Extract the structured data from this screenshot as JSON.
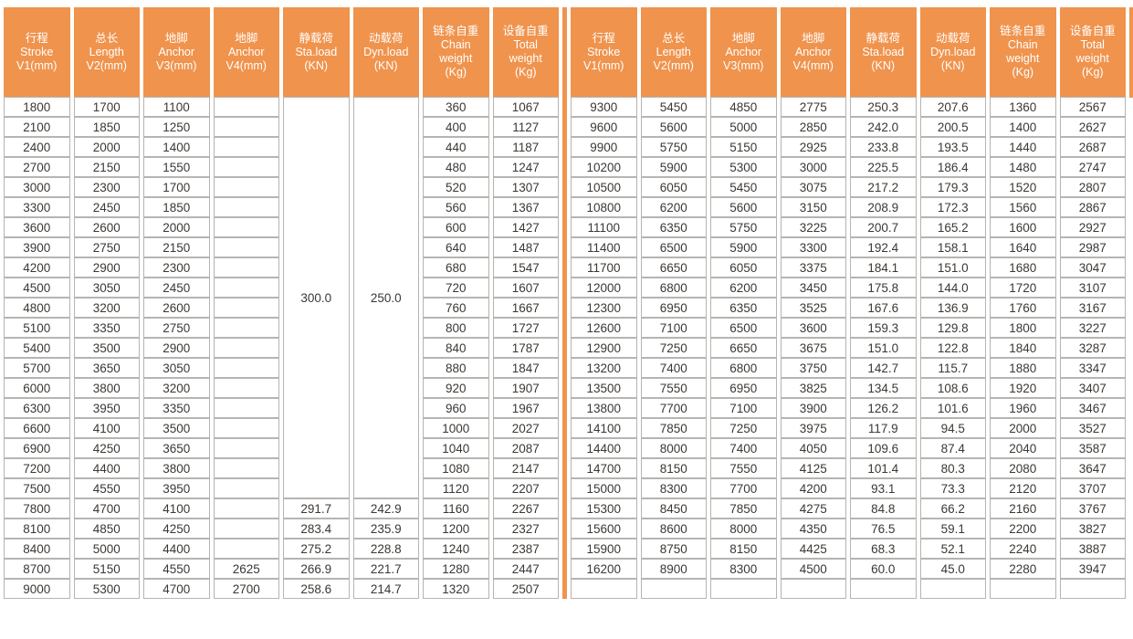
{
  "colors": {
    "header_bg": "#F0934D",
    "header_text": "#ffffff",
    "cell_border": "#b7b4b1",
    "cell_text": "#3b3835",
    "divider": "#F0934D"
  },
  "chart_data": {
    "type": "table",
    "note": "Technical specification table, two side-by-side halves sharing identical column headers"
  },
  "table": {
    "columns": [
      {
        "lines": [
          "行程",
          "Stroke",
          "V1(mm)"
        ]
      },
      {
        "lines": [
          "总长",
          "Length",
          "V2(mm)"
        ]
      },
      {
        "lines": [
          "地脚",
          "Anchor",
          "V3(mm)"
        ]
      },
      {
        "lines": [
          "地脚",
          "Anchor",
          "V4(mm)"
        ]
      },
      {
        "lines": [
          "静载荷",
          "Sta.load",
          "(KN)"
        ]
      },
      {
        "lines": [
          "动载荷",
          "Dyn.load",
          "(KN)"
        ]
      },
      {
        "lines": [
          "链条自重",
          "Chain",
          "weight",
          "(Kg)"
        ]
      },
      {
        "lines": [
          "设备自重",
          "Total",
          "weight",
          "(Kg)"
        ]
      }
    ],
    "left": {
      "merge": {
        "startCol": 4,
        "span": 2,
        "rowCount": 20,
        "values": [
          "300.0",
          "250.0"
        ]
      },
      "rows": [
        [
          "1800",
          "1700",
          "1100",
          "",
          "",
          "",
          "360",
          "1067"
        ],
        [
          "2100",
          "1850",
          "1250",
          "",
          "",
          "",
          "400",
          "1127"
        ],
        [
          "2400",
          "2000",
          "1400",
          "",
          "",
          "",
          "440",
          "1187"
        ],
        [
          "2700",
          "2150",
          "1550",
          "",
          "",
          "",
          "480",
          "1247"
        ],
        [
          "3000",
          "2300",
          "1700",
          "",
          "",
          "",
          "520",
          "1307"
        ],
        [
          "3300",
          "2450",
          "1850",
          "",
          "",
          "",
          "560",
          "1367"
        ],
        [
          "3600",
          "2600",
          "2000",
          "",
          "",
          "",
          "600",
          "1427"
        ],
        [
          "3900",
          "2750",
          "2150",
          "",
          "",
          "",
          "640",
          "1487"
        ],
        [
          "4200",
          "2900",
          "2300",
          "",
          "",
          "",
          "680",
          "1547"
        ],
        [
          "4500",
          "3050",
          "2450",
          "",
          "",
          "",
          "720",
          "1607"
        ],
        [
          "4800",
          "3200",
          "2600",
          "",
          "",
          "",
          "760",
          "1667"
        ],
        [
          "5100",
          "3350",
          "2750",
          "",
          "",
          "",
          "800",
          "1727"
        ],
        [
          "5400",
          "3500",
          "2900",
          "",
          "",
          "",
          "840",
          "1787"
        ],
        [
          "5700",
          "3650",
          "3050",
          "",
          "",
          "",
          "880",
          "1847"
        ],
        [
          "6000",
          "3800",
          "3200",
          "",
          "",
          "",
          "920",
          "1907"
        ],
        [
          "6300",
          "3950",
          "3350",
          "",
          "",
          "",
          "960",
          "1967"
        ],
        [
          "6600",
          "4100",
          "3500",
          "",
          "",
          "",
          "1000",
          "2027"
        ],
        [
          "6900",
          "4250",
          "3650",
          "",
          "",
          "",
          "1040",
          "2087"
        ],
        [
          "7200",
          "4400",
          "3800",
          "",
          "",
          "",
          "1080",
          "2147"
        ],
        [
          "7500",
          "4550",
          "3950",
          "",
          "",
          "",
          "1120",
          "2207"
        ],
        [
          "7800",
          "4700",
          "4100",
          "",
          "291.7",
          "242.9",
          "1160",
          "2267"
        ],
        [
          "8100",
          "4850",
          "4250",
          "",
          "283.4",
          "235.9",
          "1200",
          "2327"
        ],
        [
          "8400",
          "5000",
          "4400",
          "",
          "275.2",
          "228.8",
          "1240",
          "2387"
        ],
        [
          "8700",
          "5150",
          "4550",
          "2625",
          "266.9",
          "221.7",
          "1280",
          "2447"
        ],
        [
          "9000",
          "5300",
          "4700",
          "2700",
          "258.6",
          "214.7",
          "1320",
          "2507"
        ]
      ]
    },
    "right": {
      "rows": [
        [
          "9300",
          "5450",
          "4850",
          "2775",
          "250.3",
          "207.6",
          "1360",
          "2567"
        ],
        [
          "9600",
          "5600",
          "5000",
          "2850",
          "242.0",
          "200.5",
          "1400",
          "2627"
        ],
        [
          "9900",
          "5750",
          "5150",
          "2925",
          "233.8",
          "193.5",
          "1440",
          "2687"
        ],
        [
          "10200",
          "5900",
          "5300",
          "3000",
          "225.5",
          "186.4",
          "1480",
          "2747"
        ],
        [
          "10500",
          "6050",
          "5450",
          "3075",
          "217.2",
          "179.3",
          "1520",
          "2807"
        ],
        [
          "10800",
          "6200",
          "5600",
          "3150",
          "208.9",
          "172.3",
          "1560",
          "2867"
        ],
        [
          "11100",
          "6350",
          "5750",
          "3225",
          "200.7",
          "165.2",
          "1600",
          "2927"
        ],
        [
          "11400",
          "6500",
          "5900",
          "3300",
          "192.4",
          "158.1",
          "1640",
          "2987"
        ],
        [
          "11700",
          "6650",
          "6050",
          "3375",
          "184.1",
          "151.0",
          "1680",
          "3047"
        ],
        [
          "12000",
          "6800",
          "6200",
          "3450",
          "175.8",
          "144.0",
          "1720",
          "3107"
        ],
        [
          "12300",
          "6950",
          "6350",
          "3525",
          "167.6",
          "136.9",
          "1760",
          "3167"
        ],
        [
          "12600",
          "7100",
          "6500",
          "3600",
          "159.3",
          "129.8",
          "1800",
          "3227"
        ],
        [
          "12900",
          "7250",
          "6650",
          "3675",
          "151.0",
          "122.8",
          "1840",
          "3287"
        ],
        [
          "13200",
          "7400",
          "6800",
          "3750",
          "142.7",
          "115.7",
          "1880",
          "3347"
        ],
        [
          "13500",
          "7550",
          "6950",
          "3825",
          "134.5",
          "108.6",
          "1920",
          "3407"
        ],
        [
          "13800",
          "7700",
          "7100",
          "3900",
          "126.2",
          "101.6",
          "1960",
          "3467"
        ],
        [
          "14100",
          "7850",
          "7250",
          "3975",
          "117.9",
          "94.5",
          "2000",
          "3527"
        ],
        [
          "14400",
          "8000",
          "7400",
          "4050",
          "109.6",
          "87.4",
          "2040",
          "3587"
        ],
        [
          "14700",
          "8150",
          "7550",
          "4125",
          "101.4",
          "80.3",
          "2080",
          "3647"
        ],
        [
          "15000",
          "8300",
          "7700",
          "4200",
          "93.1",
          "73.3",
          "2120",
          "3707"
        ],
        [
          "15300",
          "8450",
          "7850",
          "4275",
          "84.8",
          "66.2",
          "2160",
          "3767"
        ],
        [
          "15600",
          "8600",
          "8000",
          "4350",
          "76.5",
          "59.1",
          "2200",
          "3827"
        ],
        [
          "15900",
          "8750",
          "8150",
          "4425",
          "68.3",
          "52.1",
          "2240",
          "3887"
        ],
        [
          "16200",
          "8900",
          "8300",
          "4500",
          "60.0",
          "45.0",
          "2280",
          "3947"
        ],
        [
          "",
          "",
          "",
          "",
          "",
          "",
          "",
          ""
        ]
      ]
    }
  }
}
